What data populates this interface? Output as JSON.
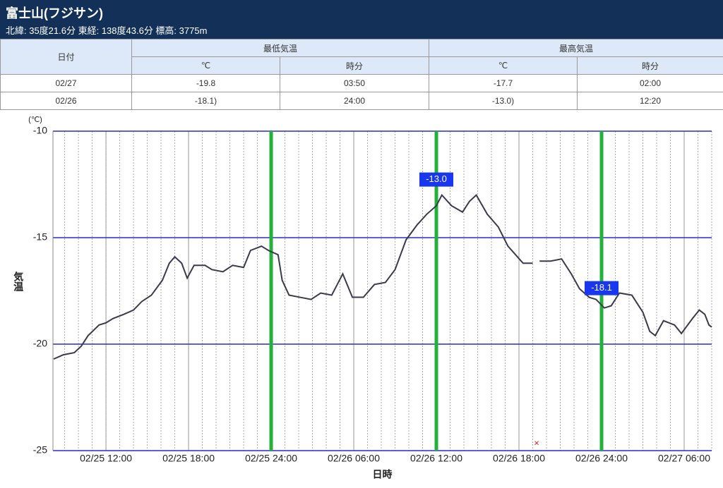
{
  "header": {
    "title": "富士山(フジサン)",
    "subtitle": "北緯: 35度21.6分 東経: 138度43.6分 標高: 3775m"
  },
  "table": {
    "date_header": "日付",
    "min_header": "最低気温",
    "max_header": "最高気温",
    "subheaders": [
      "℃",
      "時分",
      "℃",
      "時分"
    ],
    "rows": [
      [
        "02/27",
        "-19.8",
        "03:50",
        "-17.7",
        "02:00"
      ],
      [
        "02/26",
        "-18.1)",
        "24:00",
        "-13.0)",
        "12:20"
      ]
    ]
  },
  "chart_data": {
    "type": "line",
    "y_unit": "(℃)",
    "y_label": "気温",
    "x_label": "日時",
    "x": [
      8.2,
      8.9,
      9.7,
      10.2,
      10.7,
      11.5,
      12.0,
      12.5,
      13.3,
      14.0,
      14.6,
      15.3,
      16.1,
      16.6,
      17.0,
      17.5,
      17.9,
      18.4,
      19.2,
      19.7,
      20.5,
      21.2,
      22.0,
      22.5,
      23.3,
      23.8,
      24.5,
      24.8,
      25.3,
      26.1,
      26.9,
      27.6,
      28.4,
      29.2,
      29.9,
      30.7,
      31.5,
      32.3,
      33.0,
      33.8,
      34.6,
      35.3,
      36.0,
      36.4,
      37.1,
      37.9,
      38.4,
      38.9,
      39.7,
      40.5,
      41.2,
      42.3,
      43.0,
      43.3,
      43.5,
      44.3,
      45.1,
      45.8,
      46.4,
      47.1,
      47.6,
      48.2,
      48.7,
      49.3,
      50.2,
      51.0,
      51.5,
      51.9,
      52.5,
      53.3,
      53.8,
      54.6,
      55.1,
      55.5,
      55.8,
      56.0
    ],
    "series": [
      {
        "name": "気温",
        "color": "#3a3a4e",
        "values": [
          -20.7,
          -20.5,
          -20.4,
          -20.1,
          -19.6,
          -19.1,
          -19.0,
          -18.8,
          -18.6,
          -18.4,
          -18.0,
          -17.7,
          -17.0,
          -16.2,
          -15.9,
          -16.2,
          -16.9,
          -16.3,
          -16.3,
          -16.5,
          -16.6,
          -16.3,
          -16.4,
          -15.6,
          -15.4,
          -15.6,
          -15.8,
          -17.0,
          -17.7,
          -17.8,
          -17.9,
          -17.6,
          -17.7,
          -16.7,
          -17.8,
          -17.8,
          -17.2,
          -17.1,
          -16.5,
          -15.1,
          -14.4,
          -13.9,
          -13.5,
          -13.0,
          -13.5,
          -13.8,
          -13.3,
          -13.0,
          -13.9,
          -14.5,
          -15.4,
          -16.2,
          -16.2,
          null,
          -16.1,
          -16.1,
          -16.0,
          -16.7,
          -17.4,
          -17.8,
          -17.9,
          -18.3,
          -18.2,
          -17.6,
          -17.7,
          -18.5,
          -19.4,
          -19.6,
          -18.9,
          -19.1,
          -19.5,
          -18.8,
          -18.4,
          -18.6,
          -19.1,
          -19.2
        ]
      }
    ],
    "xlim": [
      8.15,
      56
    ],
    "ylim": [
      -25,
      -10
    ],
    "yticks": [
      -25,
      -20,
      -15,
      -10
    ],
    "xticks": [
      {
        "value": 12,
        "label": "02/25 12:00"
      },
      {
        "value": 18,
        "label": "02/25 18:00"
      },
      {
        "value": 24,
        "label": "02/25 24:00"
      },
      {
        "value": 30,
        "label": "02/26 06:00"
      },
      {
        "value": 36,
        "label": "02/26 12:00"
      },
      {
        "value": 42,
        "label": "02/26 18:00"
      },
      {
        "value": 48,
        "label": "02/26 24:00"
      },
      {
        "value": 54,
        "label": "02/27 06:00"
      }
    ],
    "vlines": [
      24,
      36,
      48
    ],
    "vline_color": "#22b23a",
    "annotations": [
      {
        "x": 36,
        "value": -13.0,
        "label": "-13.0"
      },
      {
        "x": 48,
        "value": -18.1,
        "label": "-18.1"
      }
    ],
    "grid": true
  }
}
